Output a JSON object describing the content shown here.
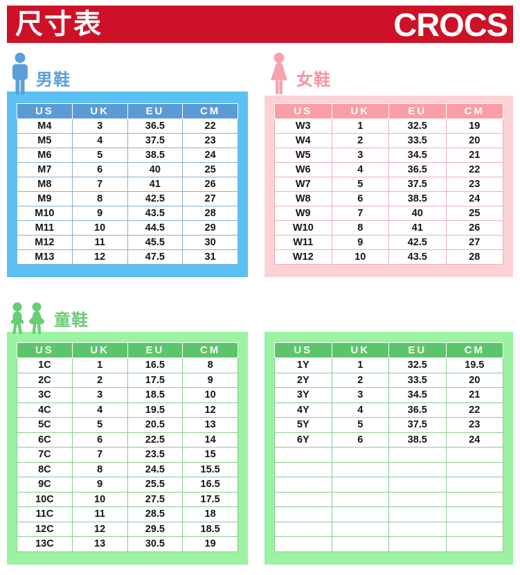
{
  "header": {
    "title": "尺寸表",
    "brand": "CROCS"
  },
  "columns": [
    "US",
    "UK",
    "EU",
    "CM"
  ],
  "men": {
    "label": "男鞋",
    "rows": [
      [
        "M4",
        "3",
        "36.5",
        "22"
      ],
      [
        "M5",
        "4",
        "37.5",
        "23"
      ],
      [
        "M6",
        "5",
        "38.5",
        "24"
      ],
      [
        "M7",
        "6",
        "40",
        "25"
      ],
      [
        "M8",
        "7",
        "41",
        "26"
      ],
      [
        "M9",
        "8",
        "42.5",
        "27"
      ],
      [
        "M10",
        "9",
        "43.5",
        "28"
      ],
      [
        "M11",
        "10",
        "44.5",
        "29"
      ],
      [
        "M12",
        "11",
        "45.5",
        "30"
      ],
      [
        "M13",
        "12",
        "47.5",
        "31"
      ]
    ]
  },
  "women": {
    "label": "女鞋",
    "rows": [
      [
        "W3",
        "1",
        "32.5",
        "19"
      ],
      [
        "W4",
        "2",
        "33.5",
        "20"
      ],
      [
        "W5",
        "3",
        "34.5",
        "21"
      ],
      [
        "W6",
        "4",
        "36.5",
        "22"
      ],
      [
        "W7",
        "5",
        "37.5",
        "23"
      ],
      [
        "W8",
        "6",
        "38.5",
        "24"
      ],
      [
        "W9",
        "7",
        "40",
        "25"
      ],
      [
        "W10",
        "8",
        "41",
        "26"
      ],
      [
        "W11",
        "9",
        "42.5",
        "27"
      ],
      [
        "W12",
        "10",
        "43.5",
        "28"
      ]
    ]
  },
  "kids": {
    "label": "童鞋",
    "left_rows": [
      [
        "1C",
        "1",
        "16.5",
        "8"
      ],
      [
        "2C",
        "2",
        "17.5",
        "9"
      ],
      [
        "3C",
        "3",
        "18.5",
        "10"
      ],
      [
        "4C",
        "4",
        "19.5",
        "12"
      ],
      [
        "5C",
        "5",
        "20.5",
        "13"
      ],
      [
        "6C",
        "6",
        "22.5",
        "14"
      ],
      [
        "7C",
        "7",
        "23.5",
        "15"
      ],
      [
        "8C",
        "8",
        "24.5",
        "15.5"
      ],
      [
        "9C",
        "9",
        "25.5",
        "16.5"
      ],
      [
        "10C",
        "10",
        "27.5",
        "17.5"
      ],
      [
        "11C",
        "11",
        "28.5",
        "18"
      ],
      [
        "12C",
        "12",
        "29.5",
        "18.5"
      ],
      [
        "13C",
        "13",
        "30.5",
        "19"
      ]
    ],
    "right_rows": [
      [
        "1Y",
        "1",
        "32.5",
        "19.5"
      ],
      [
        "2Y",
        "2",
        "33.5",
        "20"
      ],
      [
        "3Y",
        "3",
        "34.5",
        "21"
      ],
      [
        "4Y",
        "4",
        "36.5",
        "22"
      ],
      [
        "5Y",
        "5",
        "37.5",
        "23"
      ],
      [
        "6Y",
        "6",
        "38.5",
        "24"
      ],
      [
        "",
        "",
        "",
        ""
      ],
      [
        "",
        "",
        "",
        ""
      ],
      [
        "",
        "",
        "",
        ""
      ],
      [
        "",
        "",
        "",
        ""
      ],
      [
        "",
        "",
        "",
        ""
      ],
      [
        "",
        "",
        "",
        ""
      ],
      [
        "",
        "",
        "",
        ""
      ]
    ]
  },
  "colors": {
    "banner_red": "#CD1228",
    "men_frame": "#5BC1F5",
    "men_header": "#5B9BD5",
    "men_accent": "#5B9FD8",
    "women_frame": "#FBD1D6",
    "women_header": "#F99EA6",
    "women_accent": "#F7929F",
    "kids_frame": "#9BF2A2",
    "kids_header": "#5CC56B",
    "kids_accent": "#69CD76"
  }
}
